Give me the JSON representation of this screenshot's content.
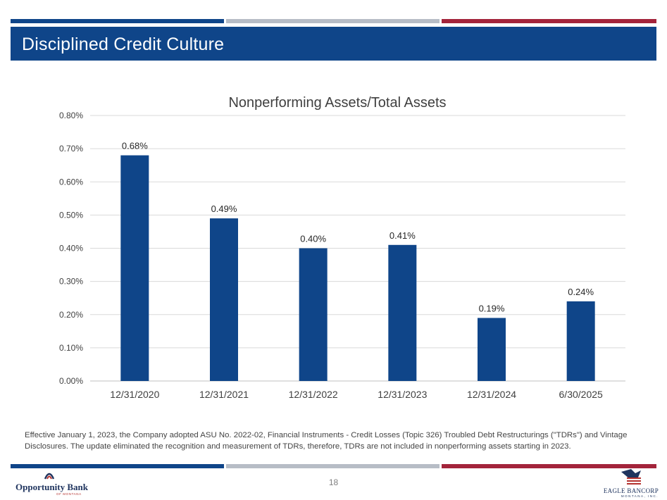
{
  "header": {
    "title": "Disciplined Credit Culture",
    "stripe_colors": [
      "#0f4589",
      "#b7bdc6",
      "#a3243b"
    ]
  },
  "chart_data": {
    "type": "bar",
    "title": "Nonperforming Assets/Total Assets",
    "categories": [
      "12/31/2020",
      "12/31/2021",
      "12/31/2022",
      "12/31/2023",
      "12/31/2024",
      "6/30/2025"
    ],
    "values": [
      0.68,
      0.49,
      0.4,
      0.41,
      0.19,
      0.24
    ],
    "data_labels": [
      "0.68%",
      "0.49%",
      "0.40%",
      "0.41%",
      "0.19%",
      "0.24%"
    ],
    "ylim": [
      0,
      0.8
    ],
    "yticks": [
      0,
      0.1,
      0.2,
      0.3,
      0.4,
      0.5,
      0.6,
      0.7,
      0.8
    ],
    "ytick_labels": [
      "0.00%",
      "0.10%",
      "0.20%",
      "0.30%",
      "0.40%",
      "0.50%",
      "0.60%",
      "0.70%",
      "0.80%"
    ],
    "grid": true,
    "bar_color": "#0f4589",
    "xlabel": "",
    "ylabel": ""
  },
  "footnote": "Effective January 1, 2023, the Company adopted ASU No. 2022-02, Financial Instruments - Credit Losses (Topic 326) Troubled Debt Restructurings (\"TDRs\") and Vintage Disclosures. The update eliminated the recognition and measurement of TDRs, therefore, TDRs are not included in nonperforming assets starting in 2023.",
  "footer": {
    "page_number": "18",
    "left_logo": {
      "name": "Opportunity Bank",
      "sub": "OF MONTANA",
      "icon": "opportunity-bank-logo-icon"
    },
    "right_logo": {
      "name": "EAGLE BANCORP",
      "sub": "MONTANA, INC.",
      "icon": "eagle-flag-logo-icon"
    }
  }
}
